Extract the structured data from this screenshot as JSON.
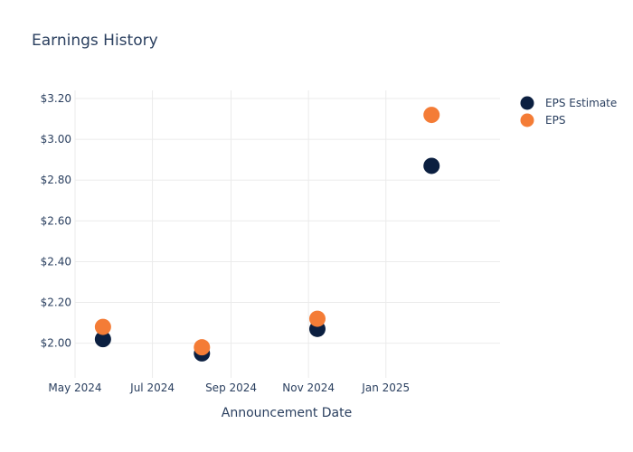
{
  "chart_data": {
    "type": "scatter",
    "title": "Earnings History",
    "xlabel": "Announcement Date",
    "ylabel": "",
    "x_ticks": [
      {
        "date": "2024-05-01",
        "label": "May 2024"
      },
      {
        "date": "2024-07-01",
        "label": "Jul 2024"
      },
      {
        "date": "2024-09-01",
        "label": "Sep 2024"
      },
      {
        "date": "2024-11-01",
        "label": "Nov 2024"
      },
      {
        "date": "2025-01-01",
        "label": "Jan 2025"
      }
    ],
    "xlim": [
      "2024-05-01",
      "2025-04-01"
    ],
    "y_ticks": [
      {
        "value": 2.0,
        "label": "$2.00"
      },
      {
        "value": 2.2,
        "label": "$2.20"
      },
      {
        "value": 2.4,
        "label": "$2.40"
      },
      {
        "value": 2.6,
        "label": "$2.60"
      },
      {
        "value": 2.8,
        "label": "$2.80"
      },
      {
        "value": 3.0,
        "label": "$3.00"
      },
      {
        "value": 3.2,
        "label": "$3.20"
      }
    ],
    "ylim": [
      1.83,
      3.24
    ],
    "grid": true,
    "legend_position": "top-right",
    "series": [
      {
        "name": "EPS Estimate",
        "color": "#0b1f40",
        "points": [
          {
            "x": "2024-05-23",
            "y": 2.02
          },
          {
            "x": "2024-08-09",
            "y": 1.95
          },
          {
            "x": "2024-11-08",
            "y": 2.07
          },
          {
            "x": "2025-02-06",
            "y": 2.87
          }
        ]
      },
      {
        "name": "EPS",
        "color": "#f47c36",
        "points": [
          {
            "x": "2024-05-23",
            "y": 2.08
          },
          {
            "x": "2024-08-09",
            "y": 1.98
          },
          {
            "x": "2024-11-08",
            "y": 2.12
          },
          {
            "x": "2025-02-06",
            "y": 3.12
          }
        ]
      }
    ]
  }
}
